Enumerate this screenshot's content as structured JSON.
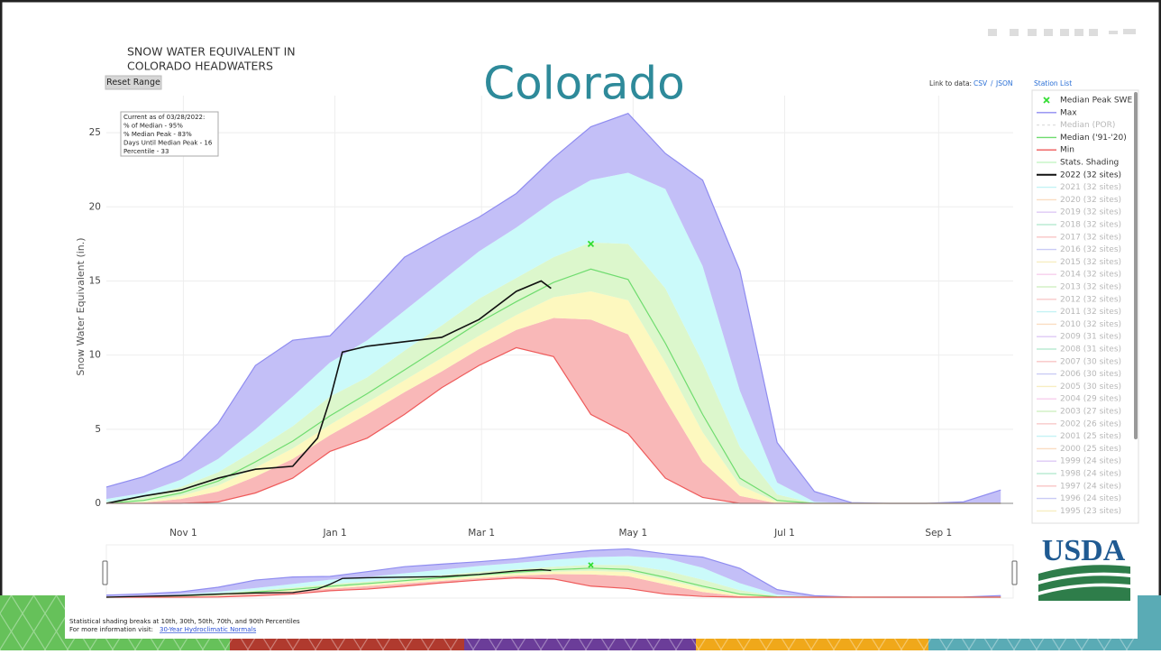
{
  "chart_data": {
    "type": "line",
    "title": [
      "SNOW WATER EQUIVALENT IN",
      "COLORADO HEADWATERS"
    ],
    "overlay_title": "Colorado",
    "ylabel": "Snow Water Equivalent (in.)",
    "x": [
      0,
      15,
      30,
      45,
      60,
      75,
      90,
      105,
      120,
      135,
      150,
      165,
      180,
      195,
      210,
      225,
      240,
      255,
      270,
      285,
      300,
      315,
      330,
      345,
      360
    ],
    "xlim": [
      0,
      365
    ],
    "xticks": [
      {
        "value": 31,
        "label": "Nov 1"
      },
      {
        "value": 92,
        "label": "Jan 1"
      },
      {
        "value": 151,
        "label": "Mar 1"
      },
      {
        "value": 212,
        "label": "May 1"
      },
      {
        "value": 273,
        "label": "Jul 1"
      },
      {
        "value": 335,
        "label": "Sep 1"
      }
    ],
    "ylim": [
      0,
      27.5
    ],
    "yticks": [
      0,
      5,
      10,
      15,
      20,
      25
    ],
    "grid": true,
    "series": [
      {
        "name": "Max",
        "color": "#8f8cf0",
        "values": [
          1.1,
          1.8,
          2.9,
          5.4,
          9.3,
          11,
          11.3,
          13.9,
          16.6,
          18,
          19.3,
          20.9,
          23.3,
          25.4,
          26.3,
          23.6,
          21.8,
          15.7,
          4.1,
          0.8,
          0.05,
          0,
          0,
          0.1,
          0.9
        ]
      },
      {
        "name": "Median ('91-'20)",
        "color": "#6fdc6f",
        "values": [
          0,
          0.2,
          0.7,
          1.5,
          2.8,
          4.2,
          5.9,
          7.4,
          9,
          10.6,
          12.2,
          13.6,
          14.9,
          15.8,
          15.1,
          10.8,
          6,
          1.7,
          0.2,
          0,
          0,
          0,
          0,
          0,
          0
        ]
      },
      {
        "name": "Min",
        "color": "#ee5a5a",
        "values": [
          0,
          0,
          0,
          0.1,
          0.7,
          1.7,
          3.5,
          4.4,
          6,
          7.8,
          9.3,
          10.5,
          9.9,
          6,
          4.7,
          1.7,
          0.4,
          0,
          0,
          0,
          0,
          0,
          0,
          0,
          0
        ]
      },
      {
        "name": "2022 (32 sites)",
        "color": "#111111",
        "x": [
          0,
          15,
          30,
          45,
          60,
          75,
          85,
          90,
          95,
          105,
          120,
          135,
          150,
          165,
          175,
          179
        ],
        "values": [
          0,
          0.5,
          0.9,
          1.7,
          2.3,
          2.5,
          4.4,
          7,
          10.2,
          10.6,
          10.9,
          11.2,
          12.4,
          14.3,
          15,
          14.5
        ]
      }
    ],
    "shading": {
      "name": "Stats. Shading",
      "color": "#c8f5c8",
      "colors": [
        "#f9b8b8",
        "#fdf8bf",
        "#dcf7cc",
        "#cbfafa",
        "#c3bff7"
      ],
      "percentiles": [
        [
          0,
          0.05,
          0.3,
          0.8,
          1.8,
          3,
          4.6,
          6,
          7.5,
          8.9,
          10.4,
          11.7,
          12.5,
          12.4,
          11.4,
          7,
          2.8,
          0.5,
          0,
          0,
          0,
          0,
          0,
          0,
          0
        ],
        [
          0,
          0.1,
          0.5,
          1.2,
          2.4,
          3.7,
          5.3,
          6.8,
          8.3,
          9.8,
          11.3,
          12.7,
          13.9,
          14.3,
          13.7,
          9.5,
          4.8,
          1.2,
          0.1,
          0,
          0,
          0,
          0,
          0,
          0
        ],
        [
          0.1,
          0.4,
          1.1,
          2.1,
          3.6,
          5.2,
          7.2,
          8.5,
          10.3,
          12,
          13.8,
          15.2,
          16.6,
          17.6,
          17.5,
          14.5,
          9.5,
          3.8,
          0.6,
          0,
          0,
          0,
          0,
          0,
          0
        ],
        [
          0.3,
          0.7,
          1.6,
          3,
          5,
          7.2,
          9.5,
          11,
          13,
          15,
          17,
          18.6,
          20.4,
          21.8,
          22.3,
          21.2,
          16,
          7.6,
          1.4,
          0.1,
          0,
          0,
          0,
          0,
          0
        ]
      ]
    },
    "peak": {
      "name": "Median Peak SWE",
      "x": 195,
      "y": 17.5,
      "color": "#33dd33"
    },
    "median_por": {
      "name": "Median (POR)",
      "color": "#cccccc"
    },
    "legend_extra": [
      {
        "name": "2021 (32 sites)",
        "color": "#9eeaf0"
      },
      {
        "name": "2020 (32 sites)",
        "color": "#f8c89a"
      },
      {
        "name": "2019 (32 sites)",
        "color": "#c8a6f0"
      },
      {
        "name": "2018 (32 sites)",
        "color": "#8fe0b8"
      },
      {
        "name": "2017 (32 sites)",
        "color": "#f4a0a0"
      },
      {
        "name": "2016 (32 sites)",
        "color": "#a8aaf0"
      },
      {
        "name": "2015 (32 sites)",
        "color": "#f3e39a"
      },
      {
        "name": "2014 (32 sites)",
        "color": "#f3b0e0"
      },
      {
        "name": "2013 (32 sites)",
        "color": "#b8e8a0"
      },
      {
        "name": "2012 (32 sites)",
        "color": "#f4a8a8"
      },
      {
        "name": "2011 (32 sites)",
        "color": "#9eeaf0"
      },
      {
        "name": "2010 (32 sites)",
        "color": "#f8c89a"
      },
      {
        "name": "2009 (31 sites)",
        "color": "#c8a6f0"
      },
      {
        "name": "2008 (31 sites)",
        "color": "#8fe0b8"
      },
      {
        "name": "2007 (30 sites)",
        "color": "#f4a0a0"
      },
      {
        "name": "2006 (30 sites)",
        "color": "#a8aaf0"
      },
      {
        "name": "2005 (30 sites)",
        "color": "#f3e39a"
      },
      {
        "name": "2004 (29 sites)",
        "color": "#f3b0e0"
      },
      {
        "name": "2003 (27 sites)",
        "color": "#b8e8a0"
      },
      {
        "name": "2002 (26 sites)",
        "color": "#f4a8a8"
      },
      {
        "name": "2001 (25 sites)",
        "color": "#9eeaf0"
      },
      {
        "name": "2000 (25 sites)",
        "color": "#f8c89a"
      },
      {
        "name": "1999 (24 sites)",
        "color": "#c8a6f0"
      },
      {
        "name": "1998 (24 sites)",
        "color": "#8fe0b8"
      },
      {
        "name": "1997 (24 sites)",
        "color": "#f4a0a0"
      },
      {
        "name": "1996 (24 sites)",
        "color": "#a8aaf0"
      },
      {
        "name": "1995 (23 sites)",
        "color": "#f3e39a"
      }
    ],
    "annotation": [
      "Current as of 03/28/2022:",
      "% of Median - 95%",
      "% Median Peak - 83%",
      "Days Until Median Peak - 16",
      "Percentile - 33"
    ],
    "reset_button": "Reset Range",
    "link_label": "Link to data:",
    "link_csv": "CSV",
    "link_sep": "/",
    "link_json": "JSON",
    "station_list": "Station List"
  },
  "footer": {
    "lines": [
      "Statistical shading breaks at 10th, 30th, 50th, 70th, and 90th Percentiles",
      "For more information visit:"
    ],
    "link": "30-Year Hydroclimatic Normals"
  },
  "logo": "USDA"
}
